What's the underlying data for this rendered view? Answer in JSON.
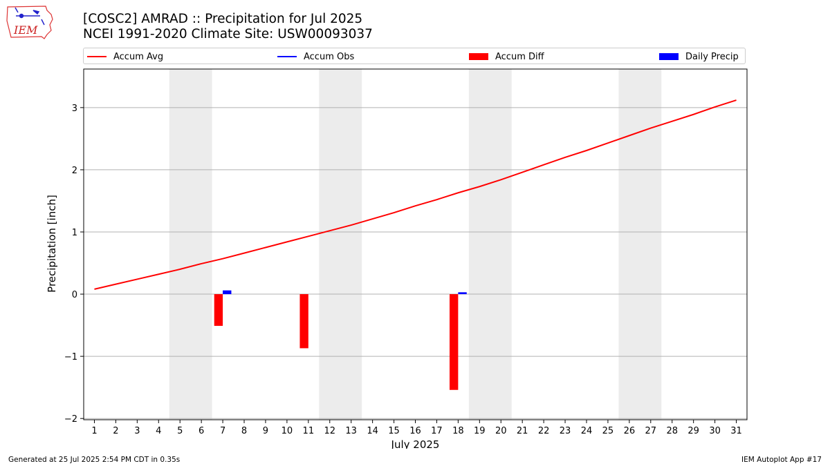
{
  "header": {
    "title_line1": "[COSC2] AMRAD :: Precipitation for Jul 2025",
    "title_line2": "NCEI 1991-2020 Climate Site: USW00093037",
    "logo_text": "IEM"
  },
  "legend": {
    "items": [
      {
        "label": "Accum Avg",
        "color": "#ff0000",
        "kind": "line"
      },
      {
        "label": "Accum Obs",
        "color": "#0000ff",
        "kind": "line"
      },
      {
        "label": "Accum Diff",
        "color": "#ff0000",
        "kind": "box"
      },
      {
        "label": "Daily Precip",
        "color": "#0000ff",
        "kind": "box"
      }
    ]
  },
  "footer": {
    "generated": "Generated at 25 Jul 2025 2:54 PM CDT in 0.35s",
    "app": "IEM Autoplot App #17"
  },
  "chart_data": {
    "type": "line",
    "xlabel": "July 2025",
    "ylabel": "Precipitation [inch]",
    "xlim": [
      0.5,
      31.5
    ],
    "ylim": [
      -2.02,
      3.62
    ],
    "x_ticks": [
      1,
      2,
      3,
      4,
      5,
      6,
      7,
      8,
      9,
      10,
      11,
      12,
      13,
      14,
      15,
      16,
      17,
      18,
      19,
      20,
      21,
      22,
      23,
      24,
      25,
      26,
      27,
      28,
      29,
      30,
      31
    ],
    "y_ticks": [
      -2,
      -1,
      0,
      1,
      2,
      3
    ],
    "y_tick_labels": [
      "−2",
      "−1",
      "0",
      "1",
      "2",
      "3"
    ],
    "grid": "horizontal",
    "weekend_bands": [
      [
        4.5,
        6.5
      ],
      [
        11.5,
        13.5
      ],
      [
        18.5,
        20.5
      ],
      [
        25.5,
        27.5
      ]
    ],
    "weekend_color": "#ececec",
    "series": [
      {
        "name": "Accum Avg",
        "kind": "line",
        "color": "#ff0000",
        "x": [
          1,
          2,
          3,
          4,
          5,
          6,
          7,
          8,
          9,
          10,
          11,
          12,
          13,
          14,
          15,
          16,
          17,
          18,
          19,
          20,
          21,
          22,
          23,
          24,
          25,
          26,
          27,
          28,
          29,
          30,
          31
        ],
        "values": [
          0.08,
          0.16,
          0.24,
          0.32,
          0.4,
          0.49,
          0.57,
          0.66,
          0.75,
          0.84,
          0.93,
          1.02,
          1.11,
          1.21,
          1.31,
          1.42,
          1.52,
          1.63,
          1.73,
          1.84,
          1.96,
          2.08,
          2.2,
          2.31,
          2.43,
          2.55,
          2.67,
          2.78,
          2.89,
          3.01,
          3.12
        ]
      },
      {
        "name": "Accum Diff",
        "kind": "bar",
        "color": "#ff0000",
        "x": [
          7,
          11,
          18
        ],
        "values": [
          -0.51,
          -0.87,
          -1.54
        ]
      },
      {
        "name": "Daily Precip",
        "kind": "bar",
        "color": "#0000ff",
        "x": [
          7,
          18
        ],
        "values": [
          0.06,
          0.03
        ]
      }
    ]
  }
}
